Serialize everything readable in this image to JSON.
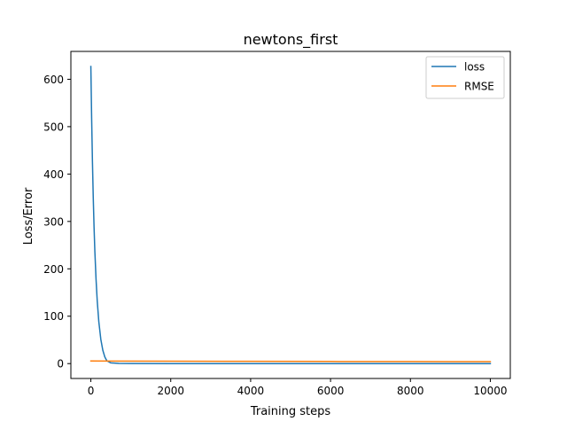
{
  "chart_data": {
    "type": "line",
    "title": "newtons_first",
    "xlabel": "Training steps",
    "ylabel": "Loss/Error",
    "xlim": [
      -500,
      10500
    ],
    "ylim": [
      -31.4,
      658.8
    ],
    "xticks": [
      0,
      2000,
      4000,
      6000,
      8000,
      10000
    ],
    "xtick_labels": [
      "0",
      "2000",
      "4000",
      "6000",
      "8000",
      "10000"
    ],
    "yticks": [
      0,
      100,
      200,
      300,
      400,
      500,
      600
    ],
    "ytick_labels": [
      "0",
      "100",
      "200",
      "300",
      "400",
      "500",
      "600"
    ],
    "legend_position": "upper right",
    "grid": false,
    "series": [
      {
        "name": "loss",
        "color": "#1f77b4",
        "x": [
          0,
          20,
          40,
          60,
          80,
          100,
          130,
          160,
          200,
          250,
          300,
          350,
          400,
          500,
          700,
          1000,
          2000,
          4000,
          6000,
          8000,
          10000
        ],
        "y": [
          627,
          517,
          426,
          351,
          289,
          238,
          178,
          132,
          88,
          51,
          28,
          14,
          6,
          1.5,
          0.3,
          0.1,
          0.05,
          0.05,
          0.05,
          0.05,
          0.05
        ]
      },
      {
        "name": "RMSE",
        "color": "#ff7f0e",
        "x": [
          0,
          2000,
          4000,
          6000,
          8000,
          10000
        ],
        "y": [
          5.5,
          5.1,
          4.8,
          4.5,
          4.3,
          4.1
        ]
      }
    ]
  }
}
